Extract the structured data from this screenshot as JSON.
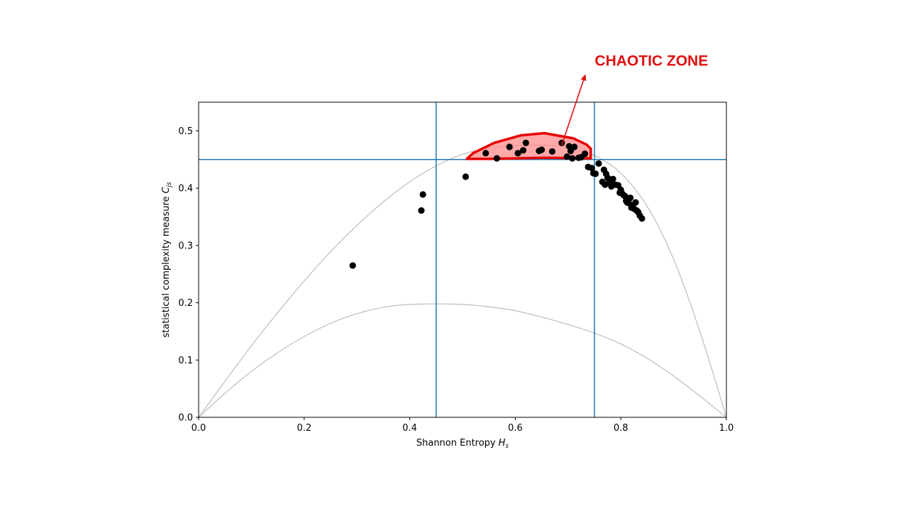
{
  "chart_data": {
    "type": "scatter",
    "title": "",
    "xlabel": "Shannon Entropy",
    "xlabel_symbol": "H",
    "xlabel_subscript": "s",
    "ylabel": "statistical complexity measure",
    "ylabel_symbol": "C",
    "ylabel_subscript": "js",
    "xlim": [
      0.0,
      1.0
    ],
    "ylim": [
      0.0,
      0.55
    ],
    "xticks": [
      0.0,
      0.2,
      0.4,
      0.6,
      0.8,
      1.0
    ],
    "xtick_labels": [
      "0.0",
      "0.2",
      "0.4",
      "0.6",
      "0.8",
      "1.0"
    ],
    "yticks": [
      0.0,
      0.1,
      0.2,
      0.3,
      0.4,
      0.5
    ],
    "ytick_labels": [
      "0.0",
      "0.1",
      "0.2",
      "0.3",
      "0.4",
      "0.5"
    ],
    "grid": false,
    "colors": {
      "points": "#000000",
      "reference_lines": "#1f77b4",
      "bound_curves": "#b8b8b8",
      "zone_fill": "#ff8c8c",
      "zone_edge": "#e60000",
      "annotation": "#e01010"
    },
    "reference_lines": {
      "vertical_x": [
        0.45,
        0.75
      ],
      "horizontal_y": [
        0.45
      ]
    },
    "upper_bound": {
      "x": [
        0.0,
        0.05,
        0.1,
        0.15,
        0.2,
        0.25,
        0.3,
        0.35,
        0.4,
        0.45,
        0.5,
        0.55,
        0.6,
        0.65,
        0.7,
        0.75,
        0.8,
        0.85,
        0.9,
        0.95,
        1.0
      ],
      "y": [
        0.0,
        0.063,
        0.125,
        0.183,
        0.238,
        0.289,
        0.335,
        0.376,
        0.411,
        0.439,
        0.459,
        0.47,
        0.474,
        0.475,
        0.471,
        0.457,
        0.426,
        0.368,
        0.276,
        0.149,
        0.0
      ]
    },
    "lower_bound": {
      "x": [
        0.0,
        0.05,
        0.1,
        0.15,
        0.2,
        0.25,
        0.3,
        0.35,
        0.4,
        0.45,
        0.5,
        0.55,
        0.6,
        0.65,
        0.7,
        0.75,
        0.8,
        0.85,
        0.9,
        0.95,
        1.0
      ],
      "y": [
        0.0,
        0.042,
        0.08,
        0.113,
        0.141,
        0.164,
        0.181,
        0.192,
        0.197,
        0.198,
        0.197,
        0.193,
        0.186,
        0.175,
        0.162,
        0.147,
        0.128,
        0.103,
        0.072,
        0.037,
        0.0
      ]
    },
    "series": [
      {
        "x": [
          0.292,
          0.422,
          0.425,
          0.506,
          0.544,
          0.565,
          0.589,
          0.605,
          0.615,
          0.62,
          0.645,
          0.65,
          0.67,
          0.688,
          0.698,
          0.702,
          0.705,
          0.708,
          0.712,
          0.72,
          0.725,
          0.732,
          0.738,
          0.745,
          0.748,
          0.752,
          0.758,
          0.765,
          0.768,
          0.77,
          0.772,
          0.775,
          0.778,
          0.78,
          0.782,
          0.785,
          0.79,
          0.795,
          0.798,
          0.8,
          0.802,
          0.805,
          0.808,
          0.81,
          0.812,
          0.815,
          0.818,
          0.82,
          0.822,
          0.825,
          0.828,
          0.83,
          0.833,
          0.836,
          0.84
        ],
        "y": [
          0.265,
          0.361,
          0.389,
          0.42,
          0.461,
          0.452,
          0.472,
          0.461,
          0.466,
          0.479,
          0.465,
          0.467,
          0.464,
          0.479,
          0.455,
          0.473,
          0.465,
          0.452,
          0.472,
          0.453,
          0.454,
          0.46,
          0.437,
          0.435,
          0.426,
          0.425,
          0.443,
          0.411,
          0.432,
          0.406,
          0.425,
          0.418,
          0.413,
          0.41,
          0.403,
          0.416,
          0.406,
          0.405,
          0.392,
          0.397,
          0.391,
          0.388,
          0.386,
          0.378,
          0.375,
          0.374,
          0.383,
          0.366,
          0.37,
          0.364,
          0.375,
          0.361,
          0.358,
          0.352,
          0.347
        ]
      }
    ],
    "chaotic_zone": {
      "label": "CHAOTIC ZONE",
      "polygon_x": [
        0.508,
        0.52,
        0.56,
        0.61,
        0.655,
        0.71,
        0.735,
        0.743,
        0.743,
        0.655,
        0.55,
        0.508
      ],
      "polygon_y": [
        0.451,
        0.461,
        0.479,
        0.492,
        0.496,
        0.487,
        0.476,
        0.469,
        0.452,
        0.453,
        0.451,
        0.451
      ],
      "arrow_from": [
        0.688,
        0.475
      ],
      "arrow_to": [
        0.733,
        0.599
      ],
      "label_anchor": [
        0.737,
        0.604
      ]
    }
  }
}
